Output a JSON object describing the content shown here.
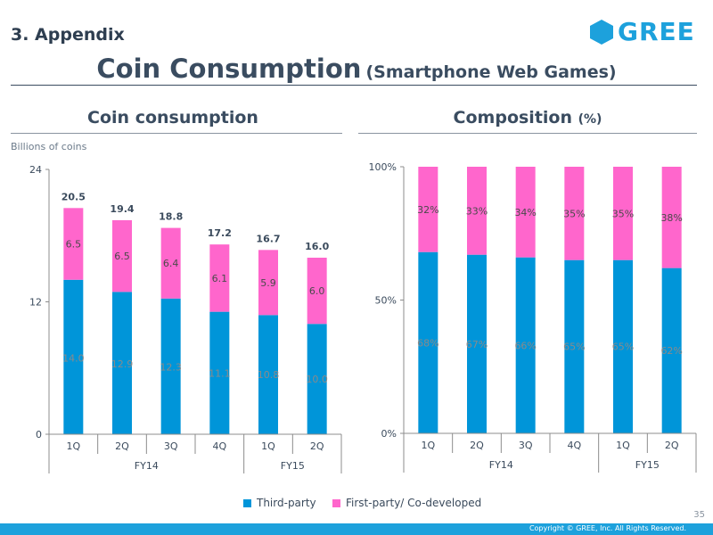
{
  "header": {
    "section": "3. Appendix",
    "title_main": "Coin Consumption",
    "title_sub": "(Smartphone Web Games)",
    "logo_text": "GREE"
  },
  "left_panel": {
    "title": "Coin consumption",
    "unit_label": "Billions of coins"
  },
  "right_panel": {
    "title": "Composition",
    "title_suffix": "(%)"
  },
  "colors": {
    "third_party": "#0095d9",
    "first_party": "#ff66cc",
    "accent": "#1da1dc"
  },
  "chart_data": [
    {
      "type": "bar",
      "stacked": true,
      "title": "Coin consumption",
      "ylabel": "Billions of coins",
      "ylim": [
        0,
        24
      ],
      "yticks": [
        "0",
        "12",
        "24"
      ],
      "categories": [
        "1Q",
        "2Q",
        "3Q",
        "4Q",
        "1Q",
        "2Q"
      ],
      "groups": [
        {
          "label": "FY14",
          "span": 4
        },
        {
          "label": "FY15",
          "span": 2
        }
      ],
      "series": [
        {
          "name": "Third-party",
          "values": [
            14.0,
            12.9,
            12.3,
            11.1,
            10.8,
            10.0
          ],
          "labels": [
            "14.0",
            "12.9",
            "12.3",
            "11.1",
            "10.8",
            "10.0"
          ]
        },
        {
          "name": "First-party/ Co-developed",
          "values": [
            6.5,
            6.5,
            6.4,
            6.1,
            5.9,
            6.0
          ],
          "labels": [
            "6.5",
            "6.5",
            "6.4",
            "6.1",
            "5.9",
            "6.0"
          ]
        }
      ],
      "totals": [
        "20.5",
        "19.4",
        "18.8",
        "17.2",
        "16.7",
        "16.0"
      ]
    },
    {
      "type": "bar",
      "stacked": true,
      "title": "Composition (%)",
      "ylim": [
        0,
        100
      ],
      "yticks": [
        "0%",
        "50%",
        "100%"
      ],
      "categories": [
        "1Q",
        "2Q",
        "3Q",
        "4Q",
        "1Q",
        "2Q"
      ],
      "groups": [
        {
          "label": "FY14",
          "span": 4
        },
        {
          "label": "FY15",
          "span": 2
        }
      ],
      "series": [
        {
          "name": "Third-party",
          "values": [
            68,
            67,
            66,
            65,
            65,
            62
          ],
          "labels": [
            "68%",
            "67%",
            "66%",
            "65%",
            "65%",
            "62%"
          ]
        },
        {
          "name": "First-party/ Co-developed",
          "values": [
            32,
            33,
            34,
            35,
            35,
            38
          ],
          "labels": [
            "32%",
            "33%",
            "34%",
            "35%",
            "35%",
            "38%"
          ]
        }
      ]
    }
  ],
  "legend": {
    "third_party": "Third-party",
    "first_party": "First-party/ Co-developed"
  },
  "page_number": "35",
  "footer": {
    "copyright": "Copyright © GREE, Inc. All Rights Reserved."
  }
}
